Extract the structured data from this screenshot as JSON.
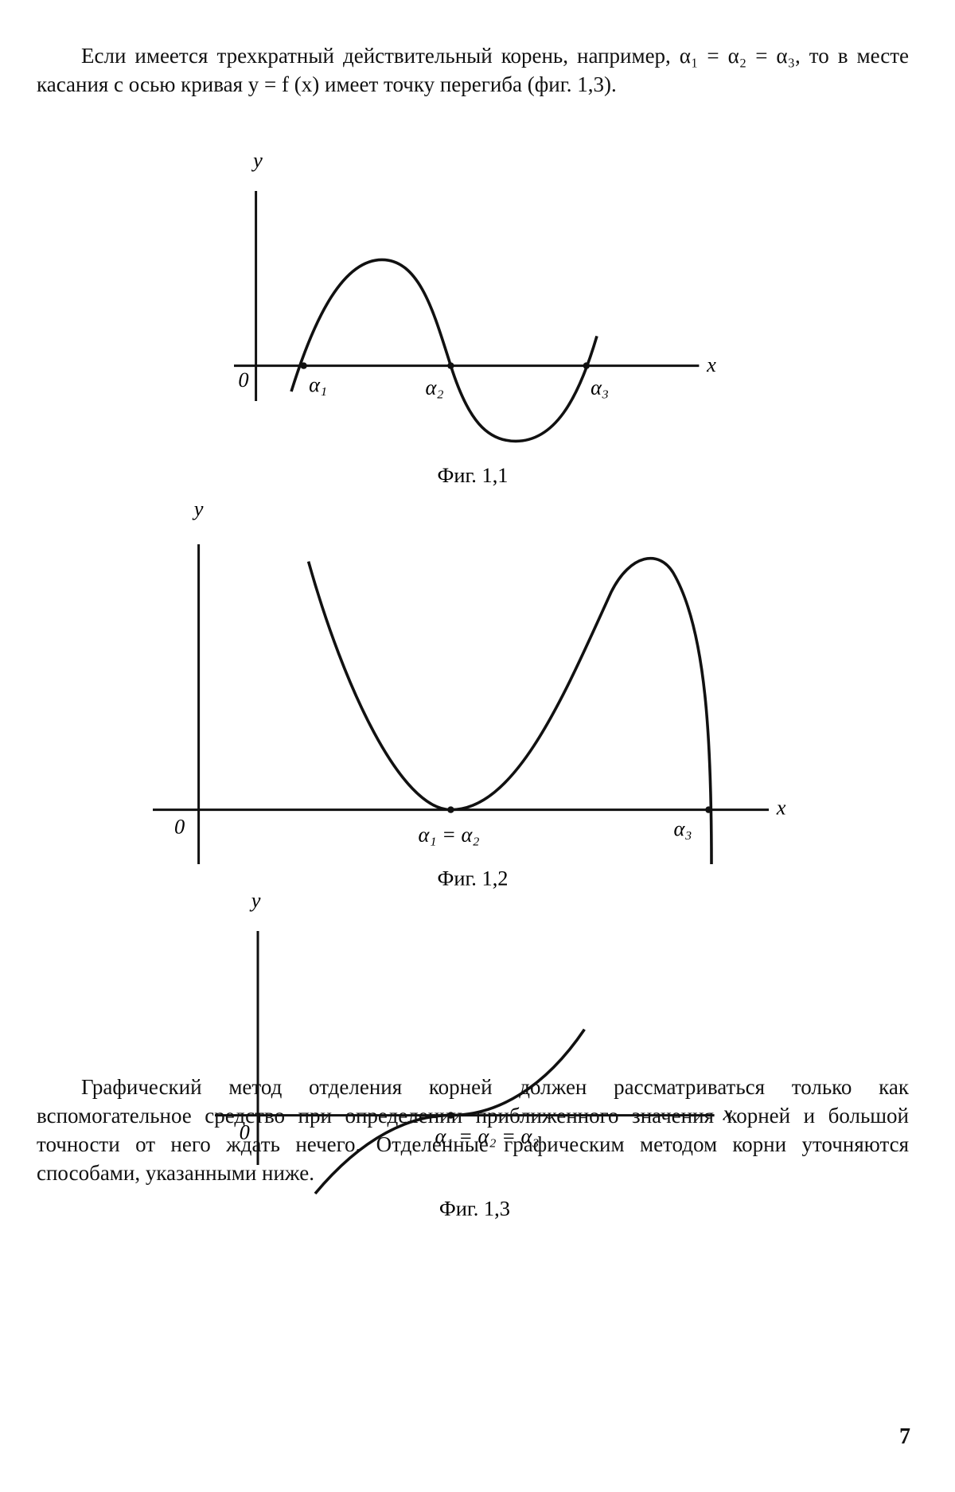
{
  "paragraphs": [
    "Если имеется трехкратный действительный корень, например, α₁ = α₂ = α₃, то в месте касания с осью кривая y = f (x) имеет точку перегиба (фиг. 1,3).",
    "Графический метод отделения корней должен рассматриваться только как вспомогательное средство при определении приближенного значения корней и большой точности от него ждать нечего. Отделенные графическим методом корни уточняются способами, указанными ниже."
  ],
  "figures": [
    {
      "caption": "Фиг. 1,1",
      "y_label": "y",
      "x_label": "x",
      "origin": "0",
      "roots": [
        "α₁",
        "α₂",
        "α₃"
      ]
    },
    {
      "caption": "Фиг. 1,2",
      "y_label": "y",
      "x_label": "x",
      "origin": "0",
      "roots": [
        "α₁ = α₂",
        "α₃"
      ]
    },
    {
      "caption": "Фиг. 1,3",
      "y_label": "y",
      "x_label": "x",
      "origin": "0",
      "roots": [
        "α₁ = α₂ = α₃"
      ]
    }
  ],
  "page_number": "7"
}
